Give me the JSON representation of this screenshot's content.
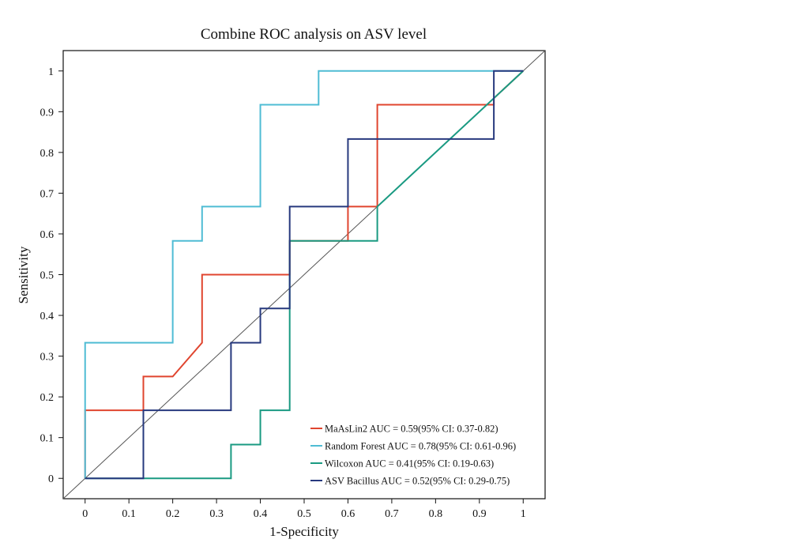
{
  "chart_data": {
    "type": "line",
    "title": "Combine ROC analysis on ASV level",
    "xlabel": "1-Specificity",
    "ylabel": "Sensitivity",
    "xlim": [
      -0.05,
      1.05
    ],
    "ylim": [
      -0.05,
      1.05
    ],
    "xticks": [
      "0",
      "0.1",
      "0.2",
      "0.3",
      "0.4",
      "0.5",
      "0.6",
      "0.7",
      "0.8",
      "0.9",
      "1"
    ],
    "yticks": [
      "0",
      "0.1",
      "0.2",
      "0.3",
      "0.4",
      "0.5",
      "0.6",
      "0.7",
      "0.8",
      "0.9",
      "1"
    ],
    "grid": false,
    "legend_position": "bottom-right",
    "reference_line": {
      "from": [
        -0.05,
        -0.05
      ],
      "to": [
        1.05,
        1.05
      ],
      "color": "#555555"
    },
    "series": [
      {
        "name": "MaAsLin2 AUC = 0.59(95% CI: 0.37-0.82)",
        "color": "#e0452f",
        "points": [
          [
            0,
            0
          ],
          [
            0,
            0.167
          ],
          [
            0.133,
            0.167
          ],
          [
            0.133,
            0.25
          ],
          [
            0.2,
            0.25
          ],
          [
            0.267,
            0.333
          ],
          [
            0.267,
            0.5
          ],
          [
            0.467,
            0.5
          ],
          [
            0.467,
            0.583
          ],
          [
            0.6,
            0.583
          ],
          [
            0.6,
            0.667
          ],
          [
            0.667,
            0.667
          ],
          [
            0.667,
            0.917
          ],
          [
            0.933,
            0.917
          ],
          [
            0.933,
            0.933
          ],
          [
            1,
            1
          ]
        ]
      },
      {
        "name": "Random Forest AUC = 0.78(95% CI: 0.61-0.96)",
        "color": "#4fbcd4",
        "points": [
          [
            0,
            0
          ],
          [
            0,
            0.333
          ],
          [
            0.2,
            0.333
          ],
          [
            0.2,
            0.583
          ],
          [
            0.267,
            0.583
          ],
          [
            0.267,
            0.667
          ],
          [
            0.4,
            0.667
          ],
          [
            0.4,
            0.917
          ],
          [
            0.533,
            0.917
          ],
          [
            0.533,
            1
          ],
          [
            1,
            1
          ]
        ]
      },
      {
        "name": "Wilcoxon AUC = 0.41(95% CI: 0.19-0.63)",
        "color": "#1a9a82",
        "points": [
          [
            0,
            0
          ],
          [
            0.333,
            0
          ],
          [
            0.333,
            0.083
          ],
          [
            0.4,
            0.083
          ],
          [
            0.4,
            0.167
          ],
          [
            0.467,
            0.167
          ],
          [
            0.467,
            0.583
          ],
          [
            0.667,
            0.583
          ],
          [
            0.667,
            0.667
          ],
          [
            1,
            1
          ]
        ]
      },
      {
        "name": "ASV Bacillus AUC = 0.52(95% CI: 0.29-0.75)",
        "color": "#27397e",
        "points": [
          [
            0,
            0
          ],
          [
            0.133,
            0
          ],
          [
            0.133,
            0.167
          ],
          [
            0.333,
            0.167
          ],
          [
            0.333,
            0.333
          ],
          [
            0.4,
            0.333
          ],
          [
            0.4,
            0.417
          ],
          [
            0.467,
            0.417
          ],
          [
            0.467,
            0.667
          ],
          [
            0.6,
            0.667
          ],
          [
            0.6,
            0.833
          ],
          [
            0.933,
            0.833
          ],
          [
            0.933,
            1
          ],
          [
            1,
            1
          ]
        ]
      }
    ]
  }
}
